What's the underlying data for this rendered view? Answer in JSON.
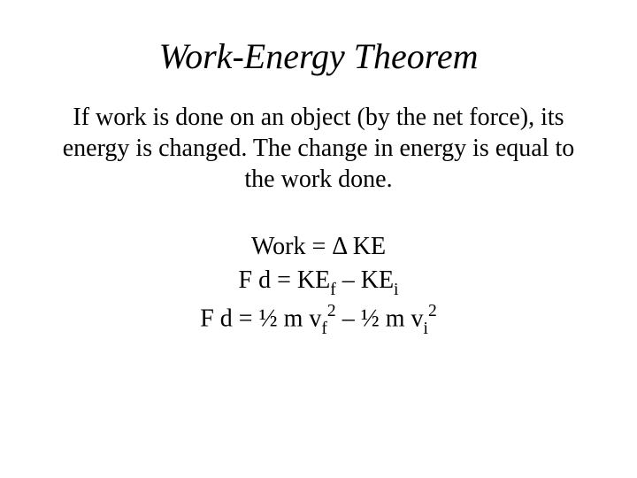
{
  "title": "Work-Energy Theorem",
  "body": "If work is done on an object (by the net force), its energy is changed. The change in energy is equal to the work done.",
  "eq1": {
    "lhs": "Work = ",
    "delta": "Δ",
    "rhs": " KE"
  },
  "eq2": {
    "lhs": "F d = KE",
    "sub_f": "f",
    "mid": " – KE",
    "sub_i": "i"
  },
  "eq3": {
    "lhs": "F d = ½ m v",
    "sub_f": "f",
    "sup2a": "2",
    "mid": " – ½ m v",
    "sub_i": "i",
    "sup2b": "2"
  },
  "colors": {
    "background": "#ffffff",
    "text": "#000000"
  },
  "typography": {
    "title_fontsize": 40,
    "body_fontsize": 28,
    "eq_fontsize": 28,
    "font_family": "Times New Roman"
  }
}
